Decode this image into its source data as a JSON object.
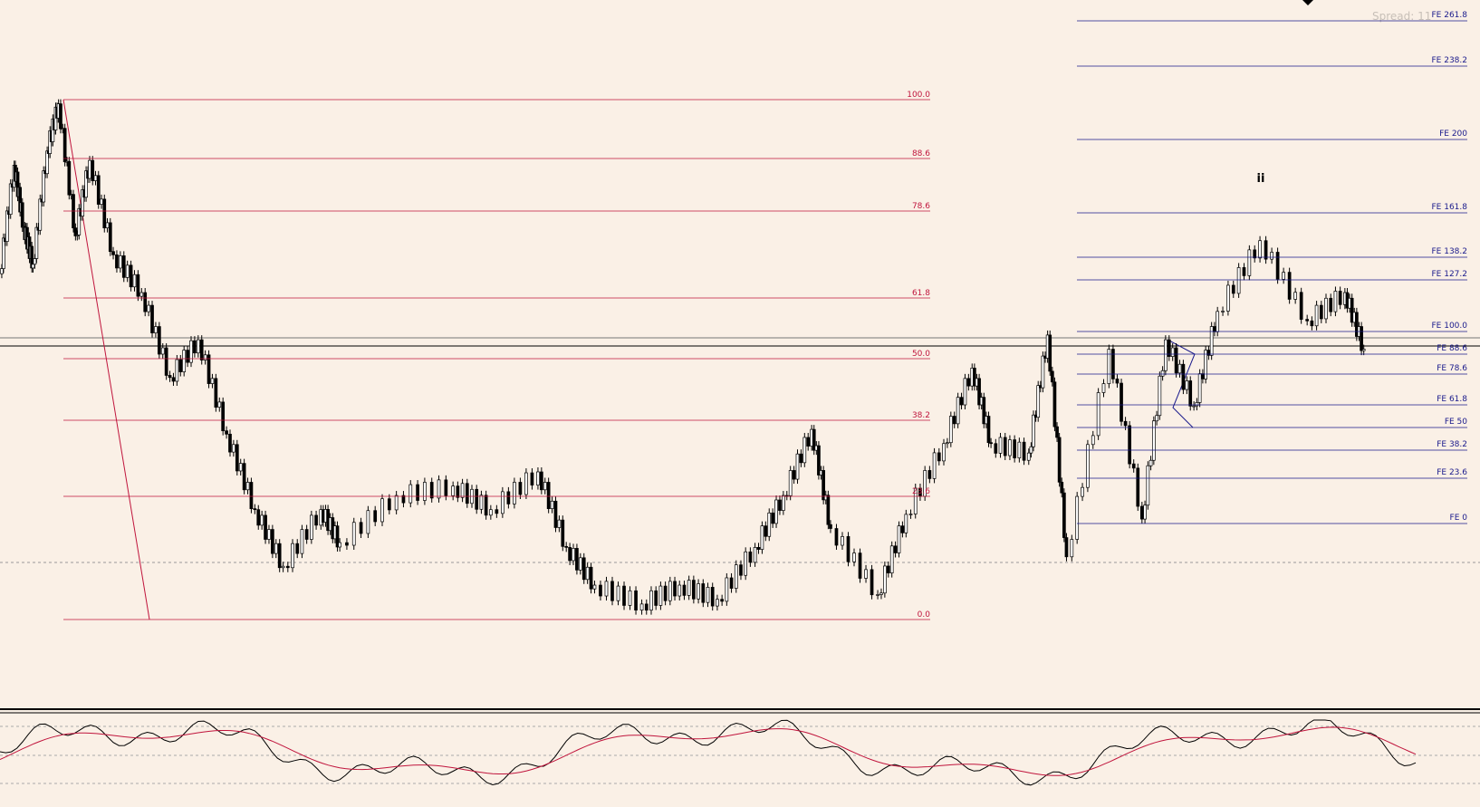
{
  "spread": "Spread: 11",
  "wave_label": "ii",
  "fib_retracement": {
    "levels": [
      "100.0",
      "88.6",
      "78.6",
      "61.8",
      "50.0",
      "38.2",
      "23.6",
      "0.0"
    ]
  },
  "fib_expansion": {
    "levels": [
      "FE 261.8",
      "FE 238.2",
      "FE 200",
      "FE 161.8",
      "FE 138.2",
      "FE 127.2",
      "FE 100.0",
      "FE 88.6",
      "FE 78.6",
      "FE 61.8",
      "FE 50",
      "FE 38.2",
      "FE 23.6",
      "FE 0"
    ]
  }
}
